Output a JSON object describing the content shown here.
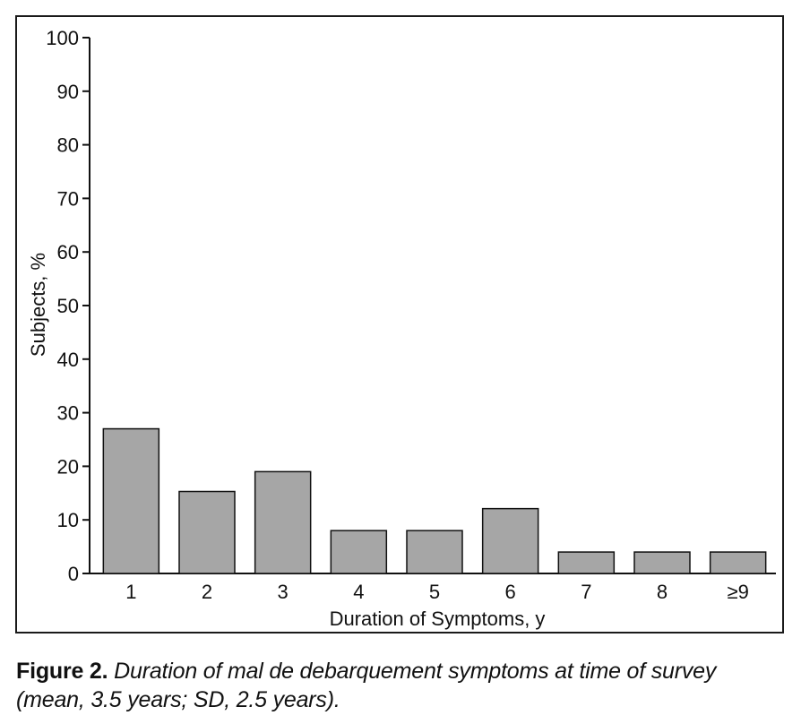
{
  "chart_data": {
    "type": "bar",
    "categories": [
      "1",
      "2",
      "3",
      "4",
      "5",
      "6",
      "7",
      "8",
      "≥9"
    ],
    "values": [
      27,
      15.3,
      19,
      8,
      8,
      12.1,
      4,
      4,
      4
    ],
    "xlabel": "Duration of Symptoms, y",
    "ylabel": "Subjects, %",
    "ylim": [
      0,
      100
    ],
    "yticks": [
      "0",
      "10",
      "20",
      "30",
      "40",
      "50",
      "60",
      "70",
      "80",
      "90",
      "100"
    ],
    "grid": false,
    "bar_color": "#a6a6a6"
  },
  "caption": {
    "label": "Figure 2.",
    "text": "Duration of mal de debarquement symptoms at time of survey (mean, 3.5 years; SD, 2.5 years)."
  }
}
